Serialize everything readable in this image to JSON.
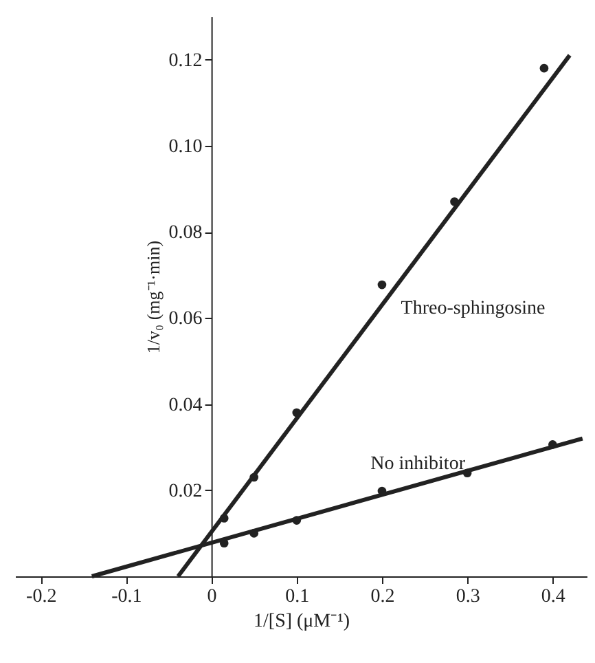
{
  "chart_data": {
    "type": "scatter",
    "xlabel": "1/[S] (μM⁻¹)",
    "ylabel": "1/v₀ (mg⁻¹·min)",
    "xlim": [
      -0.23,
      0.44
    ],
    "ylim": [
      0,
      0.13
    ],
    "xticks": [
      -0.2,
      -0.1,
      0,
      0.1,
      0.2,
      0.3,
      0.4
    ],
    "yticks": [
      0.02,
      0.04,
      0.06,
      0.08,
      {
        "value": 0.1,
        "label": "0.10"
      },
      0.12
    ],
    "grid": false,
    "series": [
      {
        "color": "#222222",
        "marker": "circle",
        "x": [
          0.015,
          0.05,
          0.1,
          0.2,
          0.285,
          0.39
        ],
        "values": [
          0.0135,
          0.023,
          0.038,
          0.0677,
          0.087,
          0.118
        ]
      },
      {
        "color": "#222222",
        "marker": "circle",
        "x": [
          0.015,
          0.05,
          0.1,
          0.2,
          0.3,
          0.4
        ],
        "values": [
          0.0077,
          0.01,
          0.013,
          0.0198,
          0.024,
          0.0306
        ]
      },
      {
        "type": "line",
        "name": "Threo-sphingosine",
        "color": "#222222",
        "line_style": "solid",
        "marker": "none",
        "x": [
          -0.039,
          0.42
        ],
        "values": [
          0,
          0.121
        ]
      },
      {
        "type": "line",
        "name": "No inhibitor",
        "color": "#222222",
        "line_style": "solid",
        "marker": "none",
        "x": [
          -0.14,
          0.435
        ],
        "values": [
          0,
          0.032
        ]
      }
    ]
  }
}
